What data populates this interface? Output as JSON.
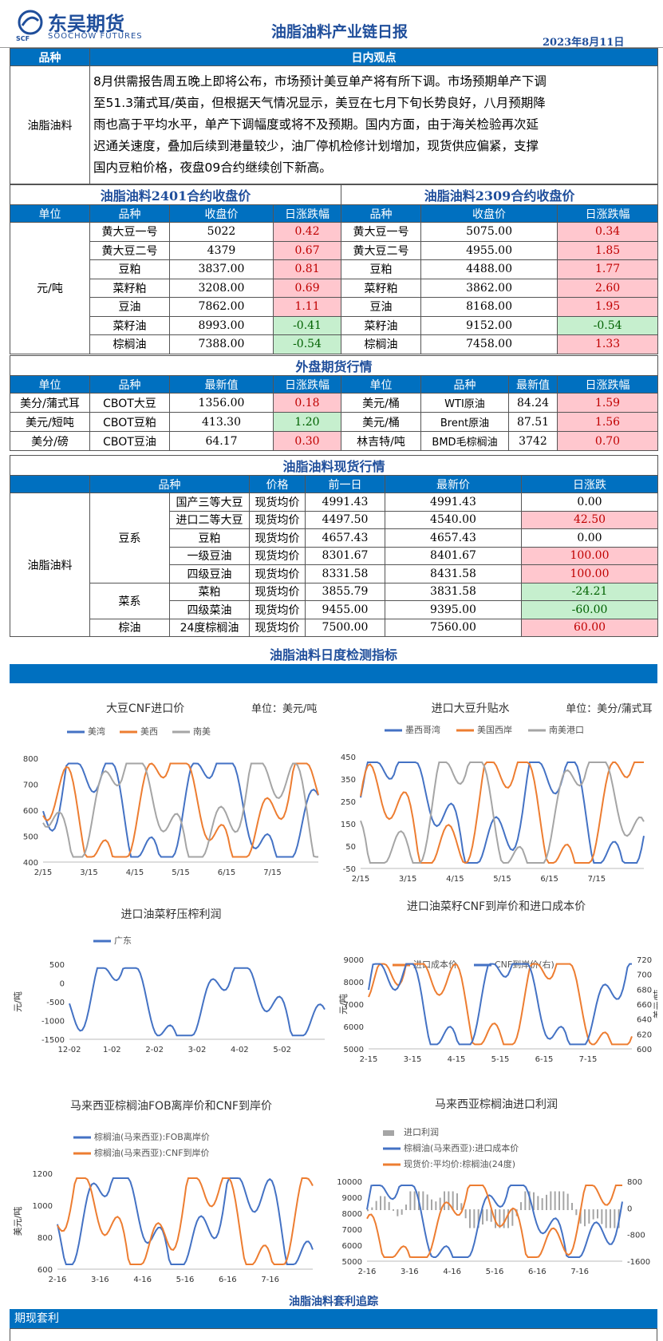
{
  "header": {
    "logo_cn": "东吴期货",
    "logo_en": "SOOCHOW FUTURES",
    "logo_mark": "SCF",
    "title": "油脂油料产业链日报",
    "date": "2023年8月11日"
  },
  "view": {
    "col_variety": "品种",
    "col_view": "日内观点",
    "variety": "油脂油料",
    "text_lines": [
      "8月供需报告周五晚上即将公布，市场预计美豆单产将有所下调。市场预期单产下调",
      "至51.3蒲式耳/英亩，但根据天气情况显示，美豆在七月下旬长势良好，八月预期降",
      "雨也高于平均水平，单产下调幅度或将不及预期。国内方面，由于海关检验再次延",
      "迟通关速度，叠加后续到港量较少，油厂停机检修计划增加，现货供应偏紧，支撑",
      "国内豆粕价格，夜盘09合约继续创下新高。"
    ]
  },
  "contracts": {
    "title_left": "油脂油料2401合约收盘价",
    "title_right": "油脂油料2309合约收盘价",
    "headers_left": [
      "单位",
      "品种",
      "收盘价",
      "日涨跌幅"
    ],
    "headers_right": [
      "品种",
      "收盘价",
      "日涨跌幅"
    ],
    "unit": "元/吨",
    "rows": [
      {
        "name": "黄大豆一号",
        "close": "5022",
        "chg": "0.42",
        "dir": "up",
        "name2": "黄大豆一号",
        "close2": "5075.00",
        "chg2": "0.34",
        "dir2": "up"
      },
      {
        "name": "黄大豆二号",
        "close": "4379",
        "chg": "0.67",
        "dir": "up",
        "name2": "黄大豆二号",
        "close2": "4955.00",
        "chg2": "1.85",
        "dir2": "up"
      },
      {
        "name": "豆粕",
        "close": "3837.00",
        "chg": "0.81",
        "dir": "up",
        "name2": "豆粕",
        "close2": "4488.00",
        "chg2": "1.77",
        "dir2": "up"
      },
      {
        "name": "菜籽粕",
        "close": "3208.00",
        "chg": "0.69",
        "dir": "up",
        "name2": "菜籽粕",
        "close2": "3862.00",
        "chg2": "2.60",
        "dir2": "up"
      },
      {
        "name": "豆油",
        "close": "7862.00",
        "chg": "1.11",
        "dir": "up",
        "name2": "豆油",
        "close2": "8168.00",
        "chg2": "1.95",
        "dir2": "up"
      },
      {
        "name": "菜籽油",
        "close": "8993.00",
        "chg": "-0.41",
        "dir": "down",
        "name2": "菜籽油",
        "close2": "9152.00",
        "chg2": "-0.54",
        "dir2": "down"
      },
      {
        "name": "棕榈油",
        "close": "7388.00",
        "chg": "-0.54",
        "dir": "down",
        "name2": "棕榈油",
        "close2": "7458.00",
        "chg2": "1.33",
        "dir2": "up"
      }
    ]
  },
  "external": {
    "title": "外盘期货行情",
    "headers": [
      "单位",
      "品种",
      "最新值",
      "日涨跌幅",
      "单位",
      "品种",
      "最新值",
      "日涨跌幅"
    ],
    "rows": [
      {
        "unit": "美分/蒲式耳",
        "name": "CBOT大豆",
        "value": "1356.00",
        "chg": "0.18",
        "dir": "up",
        "unit2": "美元/桶",
        "name2": "WTI原油",
        "value2": "84.24",
        "chg2": "1.59",
        "dir2": "up"
      },
      {
        "unit": "美元/短吨",
        "name": "CBOT豆粕",
        "value": "413.30",
        "chg": "1.20",
        "dir": "down",
        "unit2": "美元/桶",
        "name2": "Brent原油",
        "value2": "87.51",
        "chg2": "1.56",
        "dir2": "up"
      },
      {
        "unit": "美分/磅",
        "name": "CBOT豆油",
        "value": "64.17",
        "chg": "0.30",
        "dir": "up",
        "unit2": "林吉特/吨",
        "name2": "BMD毛棕榈油",
        "value2": "3742",
        "chg2": "0.70",
        "dir2": "up"
      }
    ]
  },
  "spot": {
    "title": "油脂油料现货行情",
    "headers": [
      "品种",
      "价格",
      "前一日",
      "最新价",
      "日涨跌"
    ],
    "category": "油脂油料",
    "groups": [
      {
        "group": "豆系",
        "rows": [
          {
            "name": "国产三等大豆",
            "type": "现货均价",
            "prev": "4991.43",
            "latest": "4991.43",
            "chg": "0.00",
            "dir": "flat"
          },
          {
            "name": "进口二等大豆",
            "type": "现货均价",
            "prev": "4497.50",
            "latest": "4540.00",
            "chg": "42.50",
            "dir": "up"
          },
          {
            "name": "豆粕",
            "type": "现货均价",
            "prev": "4657.43",
            "latest": "4657.43",
            "chg": "0.00",
            "dir": "flat"
          },
          {
            "name": "一级豆油",
            "type": "现货均价",
            "prev": "8301.67",
            "latest": "8401.67",
            "chg": "100.00",
            "dir": "up"
          },
          {
            "name": "四级豆油",
            "type": "现货均价",
            "prev": "8331.58",
            "latest": "8431.58",
            "chg": "100.00",
            "dir": "up"
          }
        ]
      },
      {
        "group": "菜系",
        "rows": [
          {
            "name": "菜粕",
            "type": "现货均价",
            "prev": "3855.79",
            "latest": "3831.58",
            "chg": "-24.21",
            "dir": "down"
          },
          {
            "name": "四级菜油",
            "type": "现货均价",
            "prev": "9455.00",
            "latest": "9395.00",
            "chg": "-60.00",
            "dir": "down"
          }
        ]
      },
      {
        "group": "棕油",
        "rows": [
          {
            "name": "24度棕榈油",
            "type": "现货均价",
            "prev": "7500.00",
            "latest": "7560.00",
            "chg": "60.00",
            "dir": "up"
          }
        ]
      }
    ]
  },
  "daily_title": "油脂油料日度检测指标",
  "chart_data": [
    {
      "type": "line",
      "title": "大豆CNF进口价",
      "unit": "单位：美元/吨",
      "series": [
        {
          "name": "美湾",
          "color": "#4472c4"
        },
        {
          "name": "美西",
          "color": "#ed7d31"
        },
        {
          "name": "南美",
          "color": "#a5a5a5"
        }
      ],
      "categories": [
        "2/15",
        "3/15",
        "4/15",
        "5/15",
        "6/15",
        "7/15"
      ],
      "yticks": [
        "800",
        "700",
        "600",
        "500",
        "400"
      ],
      "ylim": [
        400,
        800
      ]
    },
    {
      "type": "line",
      "title": "进口大豆升贴水",
      "unit": "单位：美分/蒲式耳",
      "series": [
        {
          "name": "墨西哥湾",
          "color": "#4472c4"
        },
        {
          "name": "美国西岸",
          "color": "#ed7d31"
        },
        {
          "name": "南美港口",
          "color": "#a5a5a5"
        }
      ],
      "categories": [
        "2/15",
        "3/15",
        "4/15",
        "5/15",
        "6/15",
        "7/15"
      ],
      "yticks": [
        "450",
        "350",
        "250",
        "150",
        "50",
        "-50"
      ],
      "ylim": [
        -50,
        450
      ]
    },
    {
      "type": "line",
      "title": "进口油菜籽压榨利润",
      "series": [
        {
          "name": "广东",
          "color": "#4472c4"
        }
      ],
      "categories": [
        "12-02",
        "1-02",
        "2-02",
        "3-02",
        "4-02",
        "5-02"
      ],
      "yticks": [
        "500",
        "0",
        "-500",
        "-1000",
        "-1500"
      ],
      "ylabel": "元/吨",
      "ylim": [
        -1500,
        500
      ]
    },
    {
      "type": "line",
      "title": "进口油菜籽CNF到岸价和进口成本价",
      "series": [
        {
          "name": "进口成本价",
          "color": "#ed7d31"
        },
        {
          "name": "CNF到岸价(右)",
          "color": "#4472c4"
        }
      ],
      "categories": [
        "2-15",
        "3-15",
        "4-15",
        "5-15",
        "6-15",
        "7-15"
      ],
      "yticks": [
        "9000",
        "8000",
        "7000",
        "6000",
        "5000"
      ],
      "yticks_right": [
        "720",
        "700",
        "680",
        "660",
        "640",
        "620",
        "600"
      ],
      "ylabel": "元/吨",
      "ylabel_right": "美元/吨"
    },
    {
      "type": "line",
      "title": "马来西亚棕榈油FOB离岸价和CNF到岸价",
      "series": [
        {
          "name": "棕榈油(马来西亚):FOB离岸价",
          "color": "#4472c4"
        },
        {
          "name": "棕榈油(马来西亚):CNF到岸价",
          "color": "#ed7d31"
        }
      ],
      "categories": [
        "2-16",
        "3-16",
        "4-16",
        "5-16",
        "6-16",
        "7-16"
      ],
      "yticks": [
        "1200",
        "1000",
        "800",
        "600"
      ],
      "ylabel": "美元/吨"
    },
    {
      "type": "line",
      "title": "马来西亚棕榈油进口利润",
      "series": [
        {
          "name": "进口利润",
          "color": "#a5a5a5"
        },
        {
          "name": "棕榈油(马来西亚):进口成本价",
          "color": "#4472c4"
        },
        {
          "name": "现货价:平均价:棕榈油(24度)",
          "color": "#ed7d31"
        }
      ],
      "categories": [
        "2-16",
        "3-16",
        "4-16",
        "5-16",
        "6-16",
        "7-16"
      ],
      "yticks": [
        "10000",
        "9000",
        "8000",
        "7000",
        "6000",
        "5000"
      ],
      "yticks_right": [
        "800",
        "0",
        "-800",
        "-1600"
      ]
    }
  ],
  "bottom": {
    "title": "油脂油料套利追踪",
    "bar": "期现套利"
  }
}
